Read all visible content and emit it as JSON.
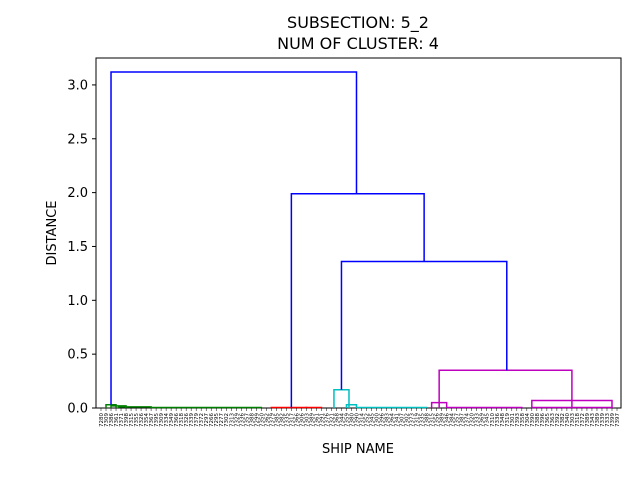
{
  "chart_data": {
    "type": "dendrogram",
    "title_line1": "SUBSECTION: 5_2",
    "title_line2": "NUM OF CLUSTER: 4",
    "xlabel": "SHIP NAME",
    "ylabel": "DISTANCE",
    "ylim": [
      0,
      3.25
    ],
    "yticks": [
      "0.0",
      "0.5",
      "1.0",
      "1.5",
      "2.0",
      "2.5",
      "3.0"
    ],
    "leaf_count": 104,
    "leaf_labels": [
      "7280",
      "7309",
      "7386",
      "7361",
      "7371",
      "7398",
      "7315",
      "7355",
      "7326",
      "7354",
      "7367",
      "7395",
      "7309",
      "7334",
      "7349",
      "7366",
      "7318",
      "7326",
      "7339",
      "7379",
      "7372",
      "7297",
      "7266",
      "7295",
      "7277",
      "7302",
      "7313",
      "7329",
      "7336",
      "7357",
      "7388",
      "7299",
      "7350",
      "7362",
      "7379",
      "7385",
      "7382",
      "7335",
      "7317",
      "7366",
      "7306",
      "7303",
      "7389",
      "7361",
      "7391",
      "7376",
      "7321",
      "7368",
      "7344",
      "7359",
      "7380",
      "7390",
      "7314",
      "7352",
      "7345",
      "7300",
      "7396",
      "7383",
      "7364",
      "7341",
      "7307",
      "7302",
      "7373",
      "7319",
      "7335",
      "7388",
      "7315",
      "7356",
      "7389",
      "7346",
      "7384",
      "7357",
      "7387",
      "7374",
      "7320",
      "7333",
      "7369",
      "7345",
      "7310",
      "7336",
      "7348",
      "7319",
      "7301",
      "7393",
      "7358",
      "7304",
      "7390",
      "7388",
      "7396",
      "7365",
      "7363",
      "7392",
      "7382",
      "7340",
      "7303",
      "7318",
      "7372",
      "7389",
      "7343",
      "7389",
      "7339",
      "7333",
      "7399",
      "7397"
    ],
    "links": [
      {
        "x1": 1,
        "x2": 3,
        "h": 0.03,
        "color": "#008000"
      },
      {
        "x1": 2,
        "x2": 5,
        "h": 0.02,
        "color": "#008000"
      },
      {
        "x1": 3.5,
        "x2": 10,
        "h": 0.01,
        "color": "#008000"
      },
      {
        "x1": 10,
        "x2": 32,
        "h": 0.005,
        "color": "#008000"
      },
      {
        "x1": 34,
        "x2": 41,
        "h": 0.005,
        "color": "#ff0000"
      },
      {
        "x1": 41,
        "x2": 44,
        "h": 0.005,
        "color": "#ff0000"
      },
      {
        "x1": 46.5,
        "x2": 49.5,
        "h": 0.17,
        "color": "#00bfbf"
      },
      {
        "x1": 49,
        "x2": 51,
        "h": 0.03,
        "color": "#00bfbf"
      },
      {
        "x1": 51,
        "x2": 65,
        "h": 0.005,
        "color": "#00bfbf"
      },
      {
        "x1": 66,
        "x2": 69,
        "h": 0.05,
        "color": "#bf00bf"
      },
      {
        "x1": 69,
        "x2": 84,
        "h": 0.005,
        "color": "#bf00bf"
      },
      {
        "x1": 86,
        "x2": 102,
        "h": 0.07,
        "color": "#bf00bf"
      },
      {
        "x1": 86,
        "x2": 102,
        "h": 0.005,
        "color": "#bf00bf"
      },
      {
        "x1": 67.5,
        "x2": 94,
        "h": 0.35,
        "color": "#bf00bf"
      },
      {
        "x1": 48,
        "x2": 81,
        "h": 1.36,
        "color": "#0000ff",
        "yl": 0.17,
        "yr": 0.35
      },
      {
        "x1": 38,
        "x2": 64.5,
        "h": 1.99,
        "color": "#0000ff",
        "yl": 0.005,
        "yr": 1.36
      },
      {
        "x1": 2,
        "x2": 51,
        "h": 3.12,
        "color": "#0000ff",
        "yl": 0.03,
        "yr": 1.99
      }
    ]
  }
}
